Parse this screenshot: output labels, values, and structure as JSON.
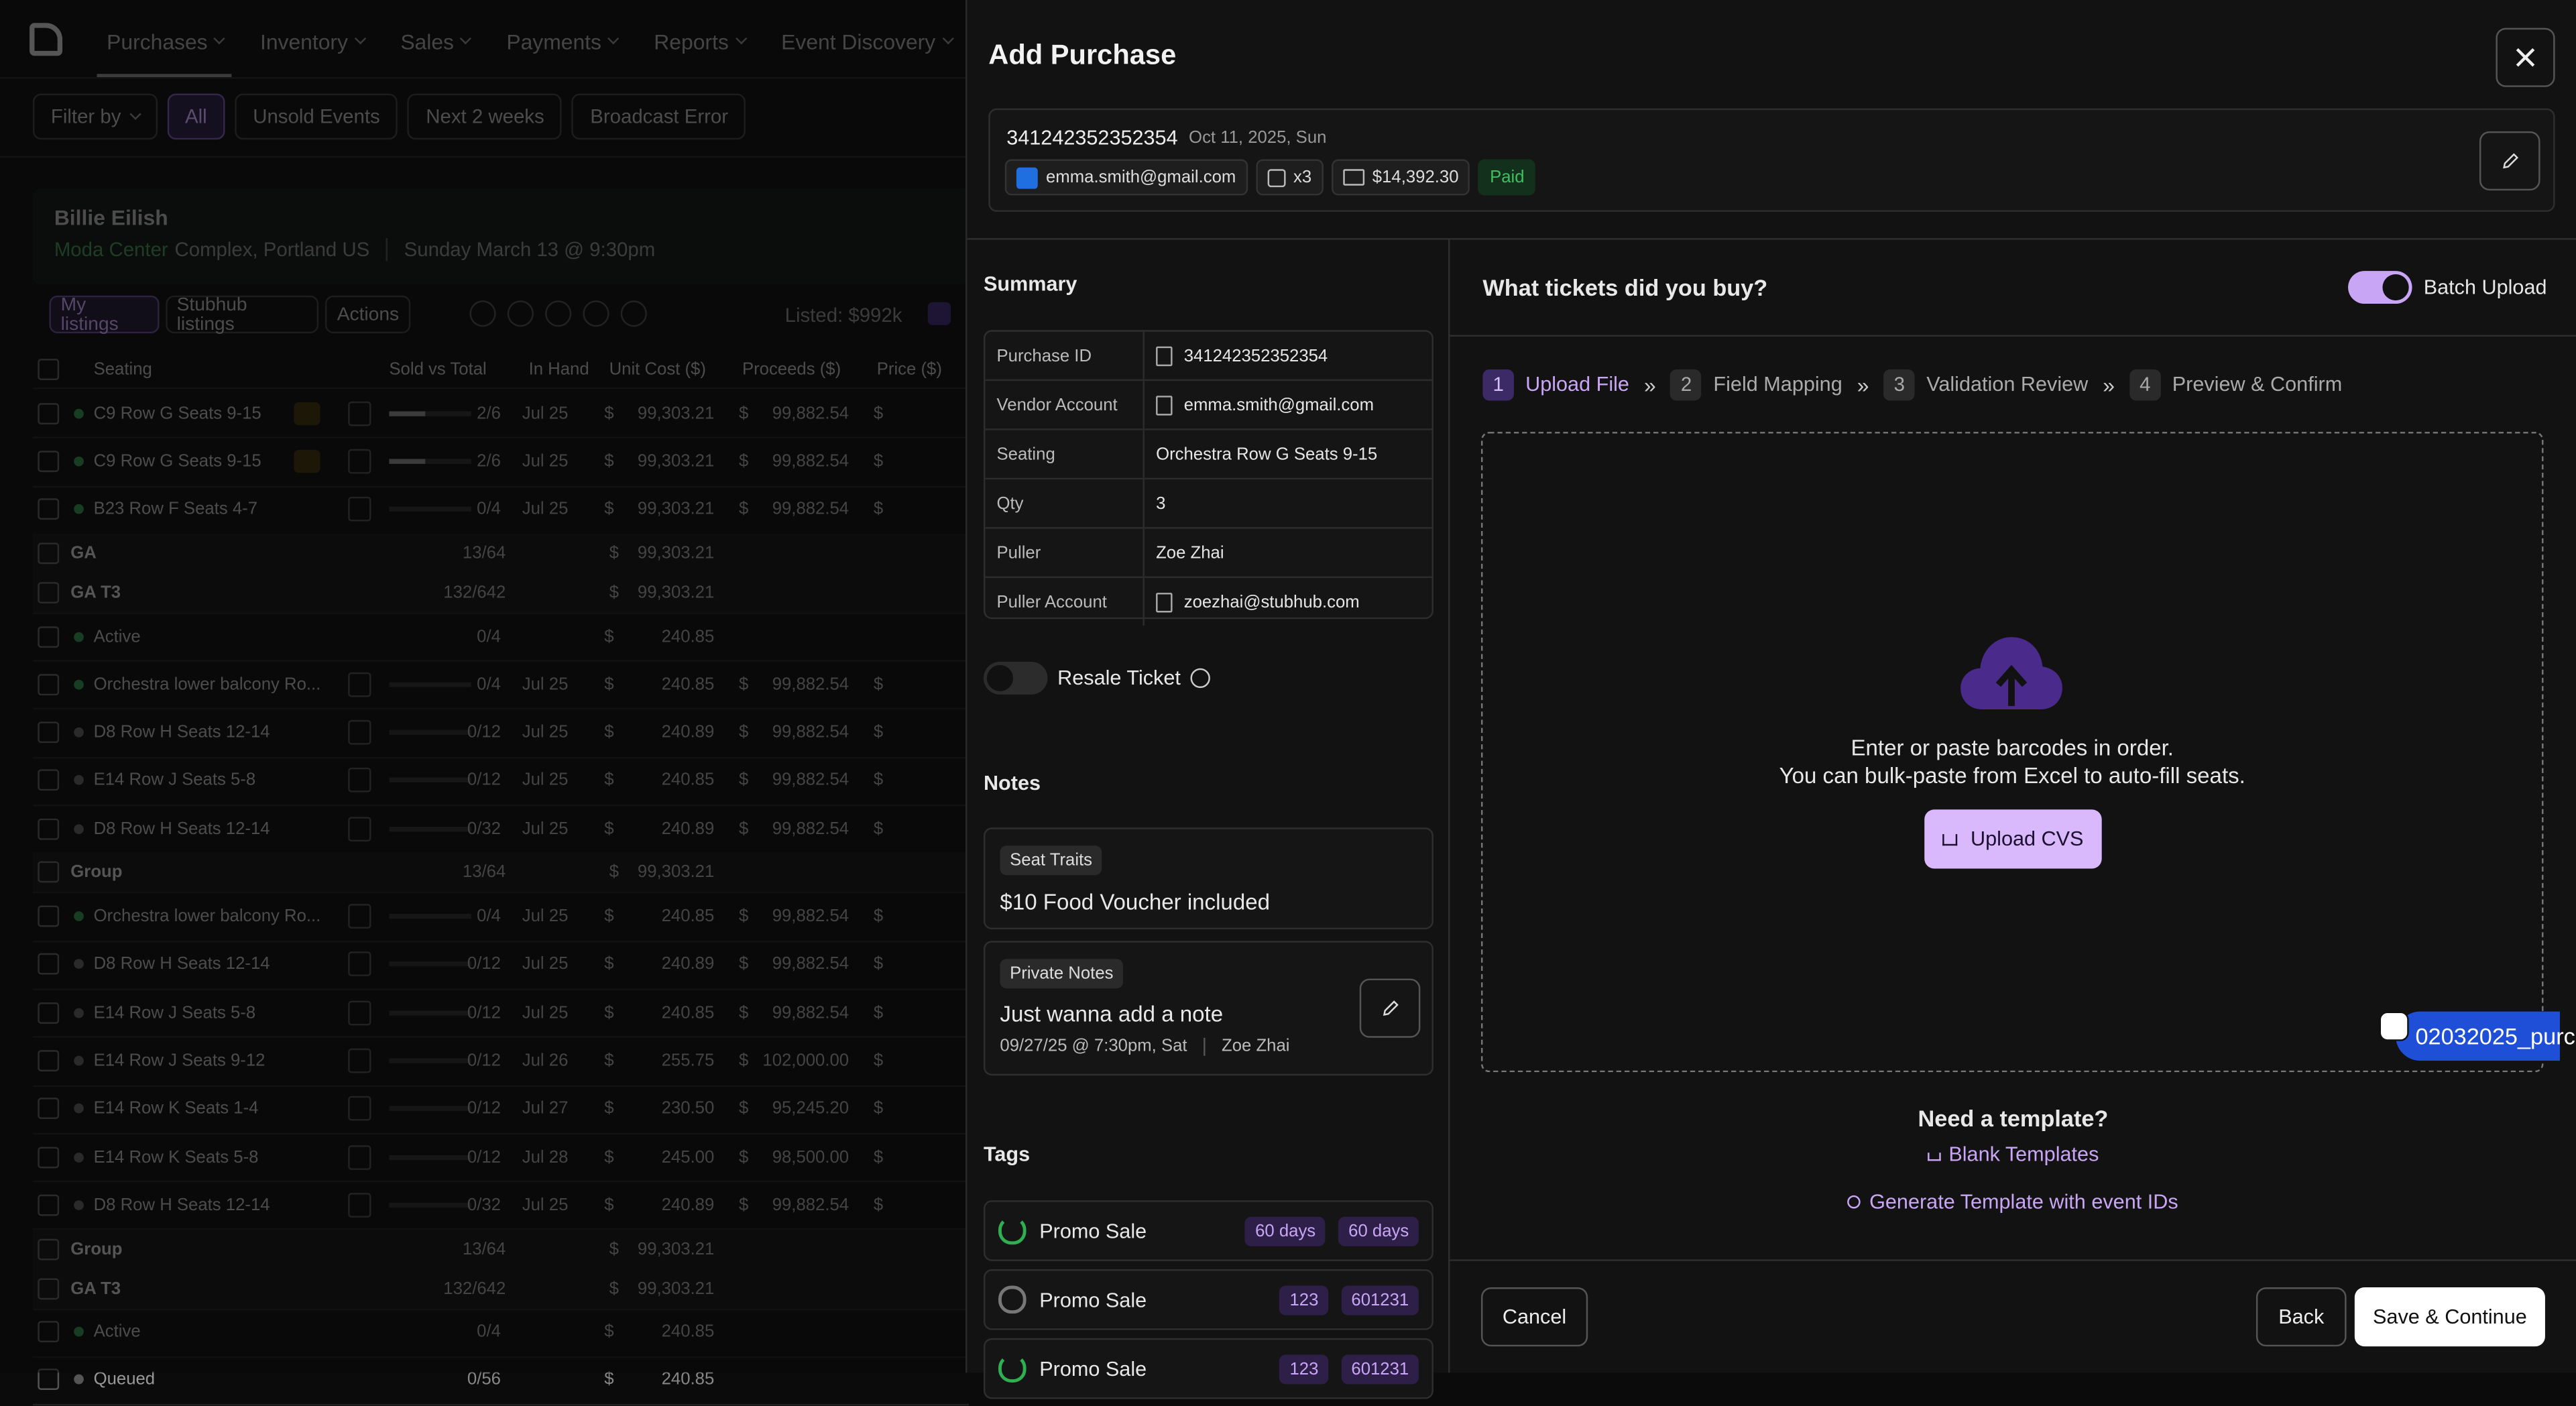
{
  "nav": {
    "items": [
      "Purchases",
      "Inventory",
      "Sales",
      "Payments",
      "Reports",
      "Event Discovery"
    ]
  },
  "filters": [
    "Filter by",
    "All",
    "Unsold Events",
    "Next 2 weeks",
    "Broadcast Error"
  ],
  "event": {
    "name": "Billie Eilish",
    "venue": "Moda Center",
    "location": "Complex, Portland US",
    "date": "Sunday March 13 @ 9:30pm"
  },
  "listing_tabs": [
    "My listings",
    "Stubhub listings",
    "Actions"
  ],
  "listed": "Listed: $992k",
  "table": {
    "currency": "$",
    "headers": [
      "Seating",
      "Sold vs Total",
      "In Hand",
      "Unit Cost ($)",
      "Proceeds ($)",
      "Price ($)"
    ],
    "rows": [
      {
        "seating": "C9 Row G Seats 9-15",
        "sold": "2/6",
        "in_hand": "Jul 25",
        "unit": "99,303.21",
        "proceeds": "99,882.54"
      },
      {
        "seating": "C9 Row G Seats 9-15",
        "sold": "2/6",
        "in_hand": "Jul 25",
        "unit": "99,303.21",
        "proceeds": "99,882.54"
      },
      {
        "seating": "B23 Row F Seats 4-7",
        "sold": "0/4",
        "in_hand": "Jul 25",
        "unit": "99,303.21",
        "proceeds": "99,882.54"
      },
      {
        "seating": "GA",
        "sold": "13/64",
        "unit": "99,303.21"
      },
      {
        "seating": "GA T3",
        "sold": "132/642",
        "unit": "99,303.21"
      },
      {
        "seating": "Active",
        "sold": "0/4",
        "unit": "240.85"
      },
      {
        "seating": "Orchestra lower balcony Ro...",
        "sold": "0/4",
        "in_hand": "Jul 25",
        "unit": "240.85",
        "proceeds": "99,882.54"
      },
      {
        "seating": "D8 Row H Seats 12-14",
        "sold": "0/12",
        "in_hand": "Jul 25",
        "unit": "240.89",
        "proceeds": "99,882.54"
      },
      {
        "seating": "E14 Row J Seats 5-8",
        "sold": "0/12",
        "in_hand": "Jul 25",
        "unit": "240.85",
        "proceeds": "99,882.54"
      },
      {
        "seating": "D8 Row H Seats 12-14",
        "sold": "0/32",
        "in_hand": "Jul 25",
        "unit": "240.89",
        "proceeds": "99,882.54"
      },
      {
        "seating": "Group",
        "sold": "13/64",
        "unit": "99,303.21"
      },
      {
        "seating": "Orchestra lower balcony Ro...",
        "sold": "0/4",
        "in_hand": "Jul 25",
        "unit": "240.85",
        "proceeds": "99,882.54"
      },
      {
        "seating": "D8 Row H Seats 12-14",
        "sold": "0/12",
        "in_hand": "Jul 25",
        "unit": "240.89",
        "proceeds": "99,882.54"
      },
      {
        "seating": "E14 Row J Seats 5-8",
        "sold": "0/12",
        "in_hand": "Jul 25",
        "unit": "240.85",
        "proceeds": "99,882.54"
      },
      {
        "seating": "E14 Row J Seats 9-12",
        "sold": "0/12",
        "in_hand": "Jul 26",
        "unit": "255.75",
        "proceeds": "102,000.00"
      },
      {
        "seating": "E14 Row K Seats 1-4",
        "sold": "0/12",
        "in_hand": "Jul 27",
        "unit": "230.50",
        "proceeds": "95,245.20"
      },
      {
        "seating": "E14 Row K Seats 5-8",
        "sold": "0/12",
        "in_hand": "Jul 28",
        "unit": "245.00",
        "proceeds": "98,500.00"
      },
      {
        "seating": "D8 Row H Seats 12-14",
        "sold": "0/32",
        "in_hand": "Jul 25",
        "unit": "240.89",
        "proceeds": "99,882.54"
      },
      {
        "seating": "Group",
        "sold": "13/64",
        "unit": "99,303.21"
      },
      {
        "seating": "GA T3",
        "sold": "132/642",
        "unit": "99,303.21"
      },
      {
        "seating": "Active",
        "sold": "0/4",
        "unit": "240.85"
      },
      {
        "seating": "Queued",
        "sold": "0/56",
        "unit": "240.85"
      }
    ]
  },
  "modal": {
    "title": "Add Purchase",
    "order": {
      "id": "341242352352354",
      "date": "Oct 11, 2025, Sun",
      "email": "emma.smith@gmail.com",
      "qty": "x3",
      "total": "$14,392.30",
      "status": "Paid"
    },
    "summary": {
      "heading": "Summary",
      "rows": [
        [
          "Purchase ID",
          "341242352352354"
        ],
        [
          "Vendor Account",
          "emma.smith@gmail.com"
        ],
        [
          "Seating",
          "Orchestra Row G Seats 9-15"
        ],
        [
          "Qty",
          "3"
        ],
        [
          "Puller",
          "Zoe Zhai"
        ],
        [
          "Puller Account",
          "zoezhai@stubhub.com"
        ]
      ]
    },
    "resale": "Resale Ticket",
    "notes": {
      "heading": "Notes",
      "traits_tag": "Seat Traits",
      "traits_text": "$10 Food Voucher included",
      "private_tag": "Private Notes",
      "private_text": "Just wanna add a note",
      "private_date": "09/27/25 @ 7:30pm, Sat",
      "private_author": "Zoe Zhai"
    },
    "tags": {
      "heading": "Tags",
      "items": [
        {
          "name": "Promo Sale",
          "badges": [
            "60 days",
            "60 days"
          ]
        },
        {
          "name": "Promo Sale",
          "badges": [
            "123",
            "601231"
          ]
        },
        {
          "name": "Promo Sale",
          "badges": [
            "123",
            "601231"
          ]
        }
      ]
    },
    "upload": {
      "question": "What tickets did you buy?",
      "batch": "Batch Upload",
      "steps": [
        {
          "number": "1",
          "label": "Upload File"
        },
        {
          "number": "2",
          "label": "Field Mapping"
        },
        {
          "number": "3",
          "label": "Validation Review"
        },
        {
          "number": "4",
          "label": "Preview & Confirm"
        }
      ],
      "line1": "Enter or paste barcodes in order.",
      "line2": "You can bulk-paste from Excel to auto-fill seats.",
      "button": "Upload CVS",
      "dragged_file": "02032025_purc",
      "template_heading": "Need a template?",
      "blank": "Blank Templates",
      "generate": "Generate Template with event IDs"
    },
    "footer": {
      "cancel": "Cancel",
      "back": "Back",
      "save": "Save & Continue"
    }
  }
}
